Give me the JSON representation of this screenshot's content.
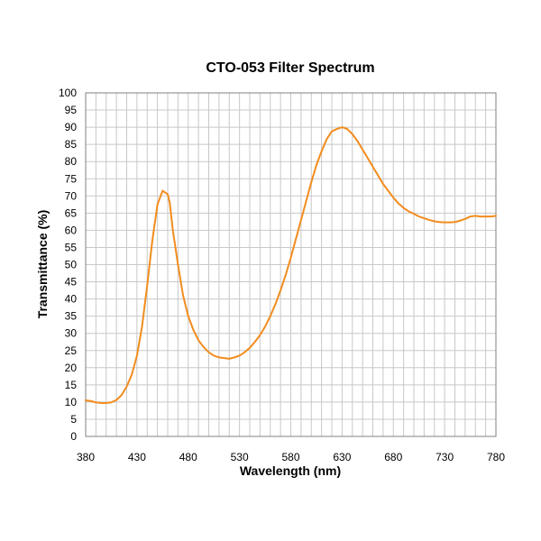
{
  "chart_data": {
    "type": "line",
    "title": "CTO-053 Filter Spectrum",
    "xlabel": "Wavelength (nm)",
    "ylabel": "Transmittance (%)",
    "xlim": [
      380,
      780
    ],
    "ylim": [
      0,
      100
    ],
    "x_ticks": [
      380,
      430,
      480,
      530,
      580,
      630,
      680,
      730,
      780
    ],
    "y_ticks": [
      0,
      5,
      10,
      15,
      20,
      25,
      30,
      35,
      40,
      45,
      50,
      55,
      60,
      65,
      70,
      75,
      80,
      85,
      90,
      95,
      100
    ],
    "grid": true,
    "series": [
      {
        "color": "#f28c1e",
        "x": [
          380,
          385,
          390,
          395,
          400,
          405,
          410,
          415,
          420,
          425,
          430,
          435,
          440,
          445,
          450,
          455,
          460,
          462,
          465,
          470,
          475,
          480,
          485,
          490,
          495,
          500,
          505,
          510,
          515,
          520,
          525,
          530,
          535,
          540,
          545,
          550,
          555,
          560,
          565,
          570,
          575,
          580,
          585,
          590,
          595,
          600,
          605,
          610,
          615,
          620,
          625,
          630,
          635,
          640,
          645,
          650,
          655,
          660,
          665,
          670,
          675,
          680,
          685,
          690,
          695,
          700,
          705,
          710,
          715,
          720,
          725,
          730,
          735,
          740,
          745,
          750,
          755,
          760,
          765,
          770,
          775,
          780
        ],
        "y": [
          10.5,
          10.3,
          9.9,
          9.7,
          9.7,
          9.9,
          10.6,
          12.0,
          14.5,
          18.0,
          23.5,
          32.0,
          44.0,
          57.0,
          67.5,
          71.5,
          70.5,
          68.0,
          60.0,
          50.0,
          41.0,
          35.0,
          31.0,
          28.0,
          26.0,
          24.5,
          23.5,
          23.0,
          22.8,
          22.6,
          23.0,
          23.5,
          24.5,
          25.8,
          27.5,
          29.5,
          32.0,
          35.0,
          38.5,
          42.5,
          47.0,
          52.0,
          57.5,
          63.0,
          68.5,
          74.0,
          79.0,
          83.0,
          86.5,
          88.8,
          89.5,
          90.0,
          89.5,
          88.0,
          86.0,
          83.5,
          81.0,
          78.5,
          76.0,
          73.5,
          71.5,
          69.5,
          67.8,
          66.5,
          65.5,
          64.8,
          64.0,
          63.5,
          63.0,
          62.6,
          62.4,
          62.3,
          62.3,
          62.4,
          62.8,
          63.3,
          64.0,
          64.2,
          64.0,
          64.0,
          64.0,
          64.2
        ]
      }
    ]
  }
}
